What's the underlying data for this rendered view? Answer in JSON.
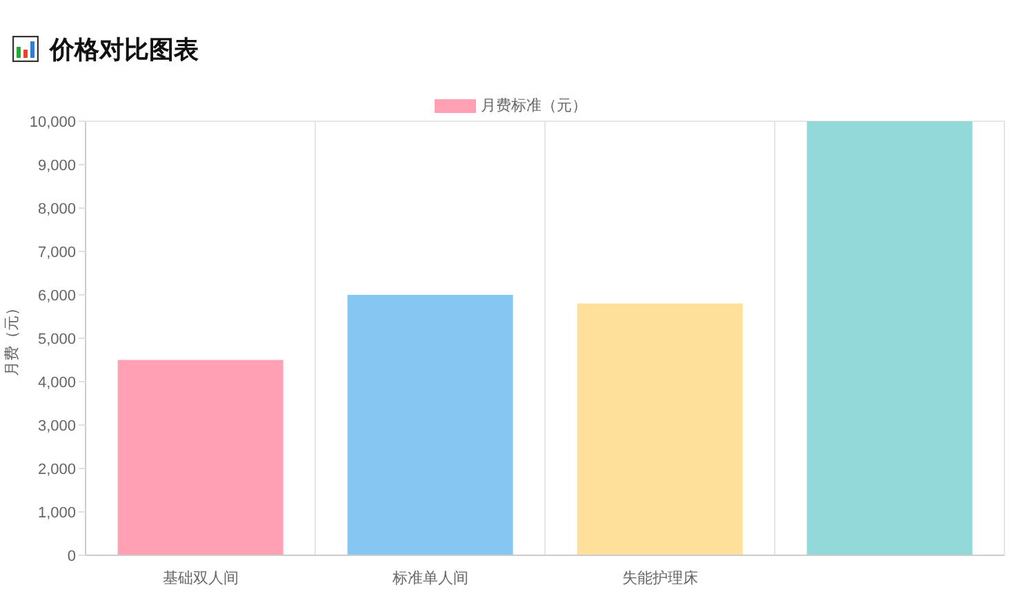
{
  "chart_data": {
    "type": "bar",
    "title": "价格对比图表",
    "ylabel": "月费（元）",
    "categories": [
      "基础双人间",
      "标准单人间",
      "失能护理床",
      null
    ],
    "series": [
      {
        "name": "月费标准（元）",
        "colors": [
          "#ffa0b4",
          "#86c6f2",
          "#fee09a",
          "#94d9d9"
        ],
        "values": [
          4500,
          6000,
          5800,
          10000
        ]
      }
    ],
    "ylim": [
      0,
      10000
    ],
    "yticks": [
      0,
      {
        "value": 1000,
        "label": "1,000"
      },
      {
        "value": 2000,
        "label": "2,000"
      },
      {
        "value": 3000,
        "label": "3,000"
      },
      {
        "value": 4000,
        "label": "4,000"
      },
      {
        "value": 5000,
        "label": "5,000"
      },
      {
        "value": 6000,
        "label": "6,000"
      },
      {
        "value": 7000,
        "label": "7,000"
      },
      {
        "value": 8000,
        "label": "8,000"
      },
      {
        "value": 9000,
        "label": "9,000"
      },
      {
        "value": 10000,
        "label": "10,000"
      }
    ],
    "grid": true,
    "legend": "top"
  }
}
